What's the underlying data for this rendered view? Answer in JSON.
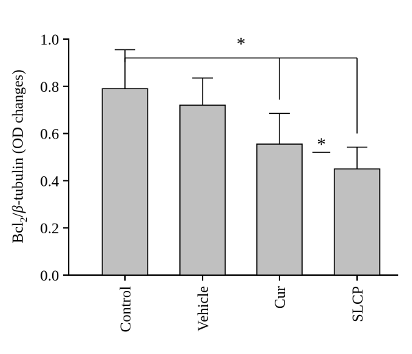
{
  "chart_data": {
    "type": "bar",
    "categories": [
      "Control",
      "Vehicle",
      "Cur",
      "SLCP"
    ],
    "values": [
      0.79,
      0.72,
      0.555,
      0.45
    ],
    "error": [
      0.165,
      0.115,
      0.13,
      0.092
    ],
    "ylabel": {
      "prefix": "Bcl",
      "subscript": "2",
      "slash": "/",
      "greek": "β",
      "suffix": "-tubulin (OD changes)"
    },
    "ylim": [
      0,
      1.0
    ],
    "yticks": [
      "0.0",
      "0.2",
      "0.4",
      "0.6",
      "0.8",
      "1.0"
    ],
    "ytick_values": [
      0,
      0.2,
      0.4,
      0.6,
      0.8,
      1.0
    ],
    "bar_color": "#c0c0c0",
    "edge_color": "#000000",
    "significance": [
      {
        "label": "*",
        "type": "bracket-top",
        "from": "Control",
        "to": "SLCP",
        "drop_to": [
          "Cur",
          "SLCP"
        ],
        "level": 0.92
      },
      {
        "label": "*",
        "type": "short-line",
        "from": "Cur",
        "to": "SLCP",
        "level": 0.52
      }
    ]
  }
}
